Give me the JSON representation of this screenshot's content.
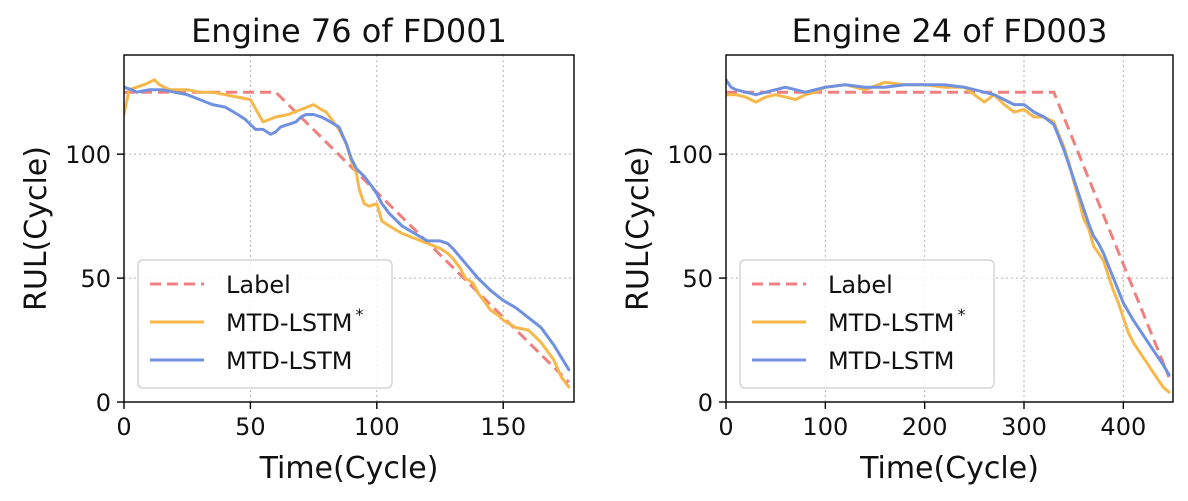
{
  "chart_data": [
    {
      "type": "line",
      "title": "Engine 76 of FD001",
      "xlabel": "Time(Cycle)",
      "ylabel": "RUL(Cycle)",
      "xlim": [
        0,
        178
      ],
      "ylim": [
        0,
        140
      ],
      "xticks": [
        0,
        50,
        100,
        150
      ],
      "yticks": [
        0,
        50,
        100
      ],
      "grid": true,
      "legend_position": "lower-left",
      "series": [
        {
          "name": "Label",
          "style": "dashed",
          "color": "#f08080",
          "x": [
            0,
            60,
            176
          ],
          "y": [
            125,
            125,
            8
          ]
        },
        {
          "name": "MTD-LSTM",
          "superscript": "*",
          "style": "solid",
          "color": "#f7b84b",
          "x": [
            0,
            2,
            5,
            8,
            10,
            12,
            14,
            16,
            18,
            20,
            25,
            30,
            35,
            40,
            45,
            50,
            55,
            60,
            65,
            70,
            75,
            78,
            80,
            85,
            88,
            90,
            92,
            93,
            95,
            97,
            100,
            102,
            105,
            110,
            115,
            120,
            125,
            128,
            130,
            133,
            135,
            138,
            140,
            143,
            145,
            148,
            150,
            155,
            160,
            165,
            170,
            173,
            176
          ],
          "y": [
            116,
            126,
            127,
            128,
            129,
            130,
            128,
            127,
            126,
            126,
            126,
            125,
            125,
            124,
            123,
            122,
            113,
            115,
            116,
            118,
            120,
            118,
            117,
            110,
            104,
            97,
            92,
            86,
            80,
            79,
            80,
            73,
            71,
            68,
            66,
            64,
            62,
            60,
            58,
            54,
            50,
            48,
            44,
            40,
            37,
            35,
            33,
            30,
            29,
            24,
            17,
            10,
            6
          ]
        },
        {
          "name": "MTD-LSTM",
          "style": "solid",
          "color": "#7090e0",
          "x": [
            0,
            3,
            5,
            10,
            15,
            20,
            25,
            30,
            35,
            40,
            45,
            48,
            50,
            52,
            55,
            58,
            60,
            62,
            65,
            68,
            70,
            72,
            75,
            78,
            80,
            85,
            88,
            90,
            92,
            95,
            98,
            100,
            102,
            105,
            110,
            115,
            120,
            125,
            128,
            130,
            135,
            140,
            145,
            150,
            155,
            160,
            165,
            170,
            176
          ],
          "y": [
            127,
            126,
            125,
            126,
            126,
            125,
            124,
            122,
            120,
            119,
            116,
            114,
            112,
            110,
            110,
            108,
            109,
            111,
            112,
            113,
            115,
            116,
            116,
            115,
            114,
            111,
            104,
            98,
            94,
            91,
            87,
            84,
            80,
            76,
            71,
            68,
            65,
            65,
            64,
            62,
            56,
            50,
            45,
            41,
            38,
            34,
            30,
            23,
            13
          ]
        }
      ]
    },
    {
      "type": "line",
      "title": "Engine 24 of FD003",
      "xlabel": "Time(Cycle)",
      "ylabel": "RUL(Cycle)",
      "xlim": [
        0,
        450
      ],
      "ylim": [
        0,
        140
      ],
      "xticks": [
        0,
        100,
        200,
        300,
        400
      ],
      "yticks": [
        0,
        50,
        100
      ],
      "grid": true,
      "legend_position": "lower-left",
      "series": [
        {
          "name": "Label",
          "style": "dashed",
          "color": "#f08080",
          "x": [
            0,
            330,
            446
          ],
          "y": [
            125,
            125,
            10
          ]
        },
        {
          "name": "MTD-LSTM",
          "superscript": "*",
          "style": "solid",
          "color": "#f7b84b",
          "x": [
            0,
            10,
            20,
            30,
            40,
            50,
            60,
            70,
            80,
            90,
            100,
            120,
            140,
            160,
            180,
            200,
            220,
            240,
            260,
            270,
            280,
            290,
            300,
            310,
            320,
            330,
            335,
            340,
            345,
            350,
            355,
            360,
            365,
            370,
            375,
            380,
            385,
            390,
            395,
            400,
            405,
            410,
            415,
            420,
            425,
            430,
            435,
            440,
            446
          ],
          "y": [
            124,
            124,
            123,
            121,
            123,
            124,
            123,
            122,
            124,
            125,
            127,
            128,
            126,
            129,
            128,
            128,
            127,
            127,
            121,
            124,
            120,
            117,
            118,
            115,
            115,
            113,
            108,
            103,
            97,
            89,
            82,
            74,
            70,
            63,
            60,
            57,
            51,
            45,
            40,
            34,
            28,
            24,
            21,
            18,
            15,
            12,
            9,
            6,
            4
          ]
        },
        {
          "name": "MTD-LSTM",
          "style": "solid",
          "color": "#7090e0",
          "x": [
            0,
            5,
            10,
            20,
            30,
            40,
            50,
            60,
            70,
            80,
            90,
            100,
            120,
            140,
            160,
            180,
            200,
            220,
            240,
            260,
            270,
            280,
            290,
            300,
            310,
            320,
            330,
            335,
            340,
            345,
            350,
            355,
            360,
            365,
            370,
            375,
            380,
            385,
            390,
            395,
            400,
            410,
            420,
            430,
            440,
            446
          ],
          "y": [
            130,
            127,
            126,
            125,
            124,
            125,
            126,
            127,
            126,
            125,
            126,
            127,
            128,
            127,
            127,
            128,
            128,
            128,
            127,
            125,
            124,
            122,
            120,
            120,
            117,
            115,
            112,
            107,
            102,
            96,
            90,
            84,
            78,
            72,
            67,
            64,
            60,
            55,
            50,
            45,
            40,
            33,
            27,
            21,
            15,
            11
          ]
        }
      ]
    }
  ]
}
